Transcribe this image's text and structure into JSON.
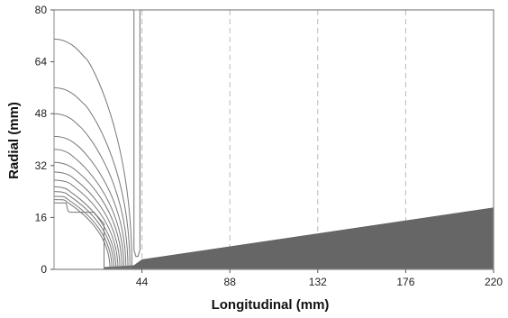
{
  "chart_data": {
    "type": "line",
    "xlabel": "Longitudinal (mm)",
    "ylabel": "Radial (mm)",
    "xlim": [
      0,
      220
    ],
    "ylim": [
      0,
      80
    ],
    "x_ticks": [
      44,
      88,
      132,
      176,
      220
    ],
    "y_ticks": [
      0,
      16,
      32,
      48,
      64,
      80
    ],
    "grid": "dashed vertical lines at x ticks",
    "colors": {
      "contour": "#777777",
      "grid": "#bbbbbb",
      "wedge_fill": "#666666",
      "frame": "#888888"
    },
    "boundary": {
      "type": "line",
      "x": [
        0,
        40,
        40,
        41,
        42,
        43,
        43,
        220,
        220,
        0
      ],
      "y": [
        80,
        80,
        6,
        4,
        4,
        6,
        80,
        80,
        0,
        0
      ]
    },
    "wedge": {
      "type": "area",
      "x": [
        25,
        40,
        44,
        220,
        220,
        25
      ],
      "y": [
        0.6,
        1.2,
        3,
        19,
        0,
        0
      ]
    },
    "contour_levels": [
      {
        "start": [
          0,
          71
        ],
        "knee": [
          16,
          65
        ],
        "end": [
          39,
          0
        ]
      },
      {
        "start": [
          0,
          56
        ],
        "knee": [
          15,
          51
        ],
        "end": [
          38,
          0
        ]
      },
      {
        "start": [
          0,
          48
        ],
        "knee": [
          13,
          44
        ],
        "end": [
          37,
          0
        ]
      },
      {
        "start": [
          0,
          41
        ],
        "knee": [
          12,
          38
        ],
        "end": [
          36,
          0
        ]
      },
      {
        "start": [
          0,
          37
        ],
        "knee": [
          11,
          34
        ],
        "end": [
          35,
          0
        ]
      },
      {
        "start": [
          0,
          33
        ],
        "knee": [
          11,
          30.5
        ],
        "end": [
          34,
          0
        ]
      },
      {
        "start": [
          0,
          30
        ],
        "knee": [
          10,
          28
        ],
        "end": [
          33,
          0
        ]
      },
      {
        "start": [
          0,
          27.5
        ],
        "knee": [
          9,
          26
        ],
        "end": [
          32,
          0
        ]
      },
      {
        "start": [
          0,
          25.5
        ],
        "knee": [
          8,
          24
        ],
        "end": [
          31,
          0
        ]
      },
      {
        "start": [
          0,
          24
        ],
        "knee": [
          7,
          23
        ],
        "end": [
          30,
          0
        ]
      },
      {
        "start": [
          0,
          22.5
        ],
        "knee": [
          6,
          22
        ],
        "end": [
          29,
          0
        ]
      },
      {
        "start": [
          0,
          21.5
        ],
        "knee": [
          6,
          21
        ],
        "end": [
          28,
          0
        ]
      }
    ],
    "inner_step": {
      "x": [
        0,
        6,
        7,
        8,
        20,
        25,
        25
      ],
      "y": [
        20.5,
        20.5,
        18,
        17.6,
        17.6,
        14,
        0
      ]
    }
  }
}
